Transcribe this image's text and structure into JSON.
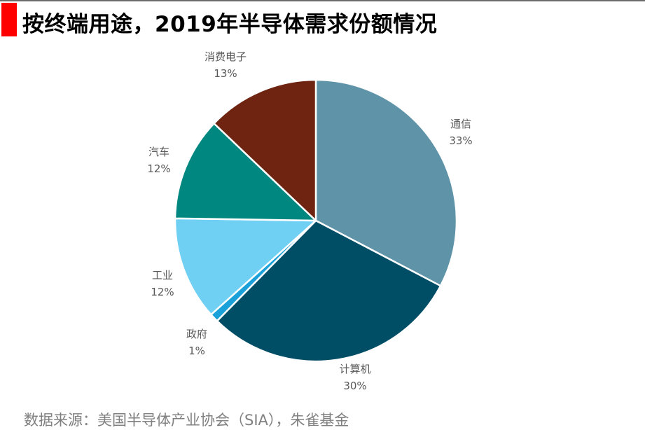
{
  "header": {
    "title": "按终端用途，2019年半导体需求份额情况",
    "accent_color": "#ff0000"
  },
  "chart_data": {
    "type": "pie",
    "title": "按终端用途，2019年半导体需求份额情况",
    "slices": [
      {
        "name": "通信",
        "value": 33,
        "label": "33%",
        "color": "#5e93a8"
      },
      {
        "name": "计算机",
        "value": 30,
        "label": "30%",
        "color": "#004d66"
      },
      {
        "name": "政府",
        "value": 1,
        "label": "1%",
        "color": "#1aa1d9"
      },
      {
        "name": "工业",
        "value": 12,
        "label": "12%",
        "color": "#6fd0f4"
      },
      {
        "name": "汽车",
        "value": 12,
        "label": "12%",
        "color": "#00877f"
      },
      {
        "name": "消费电子",
        "value": 13,
        "label": "13%",
        "color": "#6e2410"
      }
    ]
  },
  "footer": {
    "source": "数据来源：美国半导体产业协会（SIA），朱雀基金"
  }
}
